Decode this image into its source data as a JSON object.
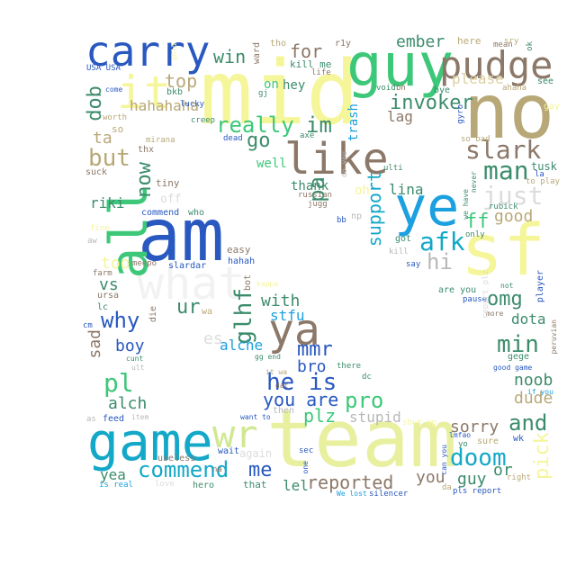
{
  "words": [
    {
      "text": "mid",
      "color": "#f5f59a"
    },
    {
      "text": "team",
      "color": "#e8f0a0"
    },
    {
      "text": "no",
      "color": "#b8a878"
    },
    {
      "text": "guy",
      "color": "#3cc878"
    },
    {
      "text": "am",
      "color": "#2858c0"
    },
    {
      "text": "sf",
      "color": "#f5f59a"
    },
    {
      "text": "ye",
      "color": "#1ca0e0"
    },
    {
      "text": "game",
      "color": "#14a8c8"
    },
    {
      "text": "carry",
      "color": "#2858c0"
    },
    {
      "text": "pudge",
      "color": "#8c7868"
    },
    {
      "text": "like",
      "color": "#8c7868"
    },
    {
      "text": "what",
      "color": "#f2f2f2"
    },
    {
      "text": "all",
      "color": "#3cc878"
    },
    {
      "text": "it",
      "color": "#f5f59a"
    },
    {
      "text": "ya",
      "color": "#8c7868"
    },
    {
      "text": "wr",
      "color": "#d0e890"
    },
    {
      "text": "commend",
      "color": "#14a8c8"
    },
    {
      "text": "he is",
      "color": "#2858c0"
    },
    {
      "text": "doom",
      "color": "#14a8c8"
    },
    {
      "text": "slark",
      "color": "#8c7868"
    },
    {
      "text": "man",
      "color": "#3c8c6c"
    },
    {
      "text": "just",
      "color": "#dcdcdc"
    },
    {
      "text": "afk",
      "color": "#14a8c8"
    },
    {
      "text": "hi",
      "color": "#b8b8b8"
    },
    {
      "text": "min",
      "color": "#3c8c6c"
    },
    {
      "text": "and",
      "color": "#3c8c6c"
    },
    {
      "text": "omg",
      "color": "#3c8c6c"
    },
    {
      "text": "dota",
      "color": "#3c8c6c"
    },
    {
      "text": "pl",
      "color": "#3cc878"
    },
    {
      "text": "reported",
      "color": "#8c7868"
    },
    {
      "text": "you are",
      "color": "#2858c0"
    },
    {
      "text": "pro",
      "color": "#3cc878"
    },
    {
      "text": "plz",
      "color": "#3cc878"
    },
    {
      "text": "mmr",
      "color": "#2858c0"
    },
    {
      "text": "bro",
      "color": "#2858c0"
    },
    {
      "text": "why",
      "color": "#2858c0"
    },
    {
      "text": "but",
      "color": "#b8a878"
    },
    {
      "text": "now",
      "color": "#3c8c6c"
    },
    {
      "text": "really",
      "color": "#3cc878"
    },
    {
      "text": "im",
      "color": "#3c8c6c"
    },
    {
      "text": "go",
      "color": "#3c8c6c"
    },
    {
      "text": "pa",
      "color": "#3c8c6c"
    },
    {
      "text": "invoker",
      "color": "#3c8c6c"
    },
    {
      "text": "support",
      "color": "#14a8c8"
    },
    {
      "text": "good",
      "color": "#b8a878"
    },
    {
      "text": "ff",
      "color": "#3cc878"
    },
    {
      "text": "win",
      "color": "#3c8c6c"
    },
    {
      "text": "for",
      "color": "#8c7868"
    },
    {
      "text": "top",
      "color": "#b8a878"
    },
    {
      "text": "qop",
      "color": "#3c8c6c"
    },
    {
      "text": "hahahaha",
      "color": "#b8a878"
    },
    {
      "text": "ta",
      "color": "#b8a878"
    },
    {
      "text": "ember",
      "color": "#3c8c6c"
    },
    {
      "text": "please",
      "color": "#dcd0a0"
    },
    {
      "text": "glhf",
      "color": "#3c8c6c"
    },
    {
      "text": "noob",
      "color": "#3c8c6c"
    },
    {
      "text": "dude",
      "color": "#b8a878"
    },
    {
      "text": "sorry",
      "color": "#8c7868"
    },
    {
      "text": "pick",
      "color": "#f5f59a"
    },
    {
      "text": "guy",
      "color": "#3c8c6c"
    },
    {
      "text": "you",
      "color": "#8c7868"
    },
    {
      "text": "or",
      "color": "#3c8c6c"
    },
    {
      "text": "me",
      "color": "#2858c0"
    },
    {
      "text": "alch",
      "color": "#3c8c6c"
    },
    {
      "text": "boy",
      "color": "#2858c0"
    },
    {
      "text": "sad",
      "color": "#8c7868"
    },
    {
      "text": "ur",
      "color": "#3c8c6c"
    },
    {
      "text": "vs",
      "color": "#3c8c6c"
    },
    {
      "text": "too",
      "color": "#f5f59a"
    },
    {
      "text": "riki",
      "color": "#3c8c6c"
    },
    {
      "text": "with",
      "color": "#3c8c6c"
    },
    {
      "text": "stfu",
      "color": "#1ca0e0"
    },
    {
      "text": "alche",
      "color": "#1ca0e0"
    },
    {
      "text": "lina",
      "color": "#3c8c6c"
    },
    {
      "text": "thank",
      "color": "#3c8c6c"
    },
    {
      "text": "trash",
      "color": "#1ca0e0"
    },
    {
      "text": "lag",
      "color": "#8c7868"
    },
    {
      "text": "stupid",
      "color": "#b8b8b8"
    },
    {
      "text": "lel",
      "color": "#3c8c6c"
    },
    {
      "text": "yea",
      "color": "#3c8c6c"
    },
    {
      "text": "on",
      "color": "#3cc878"
    },
    {
      "text": "hey",
      "color": "#3c8c6c"
    },
    {
      "text": "well",
      "color": "#3cc878"
    },
    {
      "text": "tusk",
      "color": "#3c8c6c"
    },
    {
      "text": "kill me",
      "color": "#3c8c6c"
    },
    {
      "text": "ward",
      "color": "#8c7868"
    },
    {
      "text": "tho",
      "color": "#b8a878"
    },
    {
      "text": "r1y",
      "color": "#8c7868"
    },
    {
      "text": "here",
      "color": "#b8a878"
    },
    {
      "text": "USA USA",
      "color": "#2858c0"
    },
    {
      "text": "bkb",
      "color": "#3c8c6c"
    },
    {
      "text": "lucky",
      "color": "#2858c0"
    },
    {
      "text": "creep",
      "color": "#3c8c6c"
    },
    {
      "text": "dead",
      "color": "#2858c0"
    },
    {
      "text": "axe",
      "color": "#3c8c6c"
    },
    {
      "text": "void",
      "color": "#3c8c6c"
    },
    {
      "text": "bye",
      "color": "#3c8c6c"
    },
    {
      "text": "gyro",
      "color": "#2858c0"
    },
    {
      "text": "see",
      "color": "#3c8c6c"
    },
    {
      "text": "gay",
      "color": "#f5f59a"
    },
    {
      "text": "thx",
      "color": "#8c7868"
    },
    {
      "text": "tiny",
      "color": "#8c7868"
    },
    {
      "text": "mirana",
      "color": "#b8a878"
    },
    {
      "text": "suck",
      "color": "#8c7868"
    },
    {
      "text": "commend",
      "color": "#2858c0"
    },
    {
      "text": "who",
      "color": "#3c8c6c"
    },
    {
      "text": "off",
      "color": "#dcdcdc"
    },
    {
      "text": "russian",
      "color": "#8c7868"
    },
    {
      "text": "jugg",
      "color": "#8c7868"
    },
    {
      "text": "bb",
      "color": "#2858c0"
    },
    {
      "text": "np",
      "color": "#b8b8b8"
    },
    {
      "text": "got",
      "color": "#3c8c6c"
    },
    {
      "text": "kill",
      "color": "#b8b8b8"
    },
    {
      "text": "say",
      "color": "#2858c0"
    },
    {
      "text": "only",
      "color": "#3c8c6c"
    },
    {
      "text": "rubick",
      "color": "#3c8c6c"
    },
    {
      "text": "to play",
      "color": "#b8a878"
    },
    {
      "text": "easy",
      "color": "#8c7868"
    },
    {
      "text": "hahah",
      "color": "#2858c0"
    },
    {
      "text": "slardar",
      "color": "#2858c0"
    },
    {
      "text": "meepo",
      "color": "#8c7868"
    },
    {
      "text": "farm",
      "color": "#8c7868"
    },
    {
      "text": "ursa",
      "color": "#8c7868"
    },
    {
      "text": "lc",
      "color": "#3c8c6c"
    },
    {
      "text": "die",
      "color": "#8c7868"
    },
    {
      "text": "cm",
      "color": "#2858c0"
    },
    {
      "text": "bot",
      "color": "#8c7868"
    },
    {
      "text": "kappa",
      "color": "#f5f59a"
    },
    {
      "text": "are you",
      "color": "#3c8c6c"
    },
    {
      "text": "pause",
      "color": "#2858c0"
    },
    {
      "text": "player",
      "color": "#2858c0"
    },
    {
      "text": "more",
      "color": "#8c7868"
    },
    {
      "text": "peruvian",
      "color": "#8c7868"
    },
    {
      "text": "gege",
      "color": "#3c8c6c"
    },
    {
      "text": "good game",
      "color": "#2858c0"
    },
    {
      "text": "if you",
      "color": "#1ca0e0"
    },
    {
      "text": "there",
      "color": "#3c8c6c"
    },
    {
      "text": "feed",
      "color": "#2858c0"
    },
    {
      "text": "item",
      "color": "#b8b8b8"
    },
    {
      "text": "want to",
      "color": "#2858c0"
    },
    {
      "text": "then",
      "color": "#b8b8b8"
    },
    {
      "text": "shut up",
      "color": "#f5f59a"
    },
    {
      "text": "wk",
      "color": "#2858c0"
    },
    {
      "text": "sure",
      "color": "#b8a878"
    },
    {
      "text": "lmfao",
      "color": "#2858c0"
    },
    {
      "text": "right",
      "color": "#b8a878"
    },
    {
      "text": "pls report",
      "color": "#2858c0"
    },
    {
      "text": "useless",
      "color": "#8c7868"
    },
    {
      "text": "wait",
      "color": "#2858c0"
    },
    {
      "text": "again",
      "color": "#dcdcdc"
    },
    {
      "text": "sec",
      "color": "#2858c0"
    },
    {
      "text": "hero",
      "color": "#3c8c6c"
    },
    {
      "text": "that",
      "color": "#3c8c6c"
    },
    {
      "text": "is real",
      "color": "#1ca0e0"
    },
    {
      "text": "love",
      "color": "#dcdcdc"
    },
    {
      "text": "silencer",
      "color": "#2858c0"
    },
    {
      "text": "da",
      "color": "#b8a878"
    },
    {
      "text": "We lost",
      "color": "#1ca0e0"
    },
    {
      "text": "come",
      "color": "#2858c0"
    },
    {
      "text": "worth",
      "color": "#b8a878"
    },
    {
      "text": "so",
      "color": "#b8a878"
    },
    {
      "text": "ultі",
      "color": "#3c8c6c"
    },
    {
      "text": "so bad",
      "color": "#b8a878"
    },
    {
      "text": "mean",
      "color": "#8c7868"
    },
    {
      "text": "ahaha",
      "color": "#b8a878"
    },
    {
      "text": "dc",
      "color": "#3c8c6c"
    },
    {
      "text": "it wa",
      "color": "#b8a878"
    },
    {
      "text": "dat",
      "color": "#8c7868"
    },
    {
      "text": "gg end",
      "color": "#3c8c6c"
    },
    {
      "text": "na",
      "color": "#8c7868"
    },
    {
      "text": "one",
      "color": "#2858c0"
    },
    {
      "text": "can you",
      "color": "#2858c0"
    },
    {
      "text": "yo",
      "color": "#3c8c6c"
    },
    {
      "text": "we have",
      "color": "#3c8c6c"
    },
    {
      "text": "never",
      "color": "#3c8c6c"
    },
    {
      "text": "cunt",
      "color": "#3c8c6c"
    },
    {
      "text": "ult",
      "color": "#b8b8b8"
    },
    {
      "text": "gj",
      "color": "#3c8c6c"
    },
    {
      "text": "la",
      "color": "#2858c0"
    },
    {
      "text": "sry",
      "color": "#b8a878"
    },
    {
      "text": "ok",
      "color": "#3c8c6c"
    },
    {
      "text": "bh",
      "color": "#8c7868"
    },
    {
      "text": "life",
      "color": "#8c7868"
    },
    {
      "text": "do you",
      "color": "#b8b8b8"
    },
    {
      "text": "fine",
      "color": "#f5f59a"
    },
    {
      "text": "aw",
      "color": "#b8b8b8"
    },
    {
      "text": "es",
      "color": "#dcdcdc"
    },
    {
      "text": "wa",
      "color": "#b8a878"
    },
    {
      "text": "oh",
      "color": "#f5f59a"
    },
    {
      "text": "gold",
      "color": "#f5f59a"
    },
    {
      "text": "as",
      "color": "#b8b8b8"
    },
    {
      "text": "not",
      "color": "#3c8c6c"
    },
    {
      "text": "report plz",
      "color": "#dcdcdc"
    }
  ]
}
